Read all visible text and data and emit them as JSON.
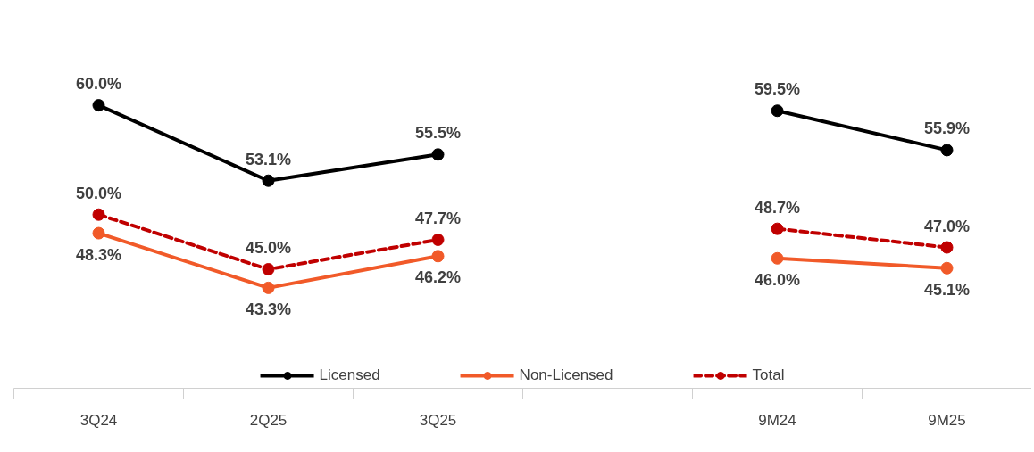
{
  "chart_data": {
    "type": "line",
    "categories": [
      "3Q24",
      "2Q25",
      "3Q25",
      null,
      "9M24",
      "9M25"
    ],
    "tick_labels": "x",
    "grid": false,
    "legend": "bottom",
    "marker": "circle",
    "series": [
      {
        "name": "Licensed",
        "color": "#000000",
        "line_style": "solid",
        "values": [
          60.0,
          53.1,
          55.5,
          null,
          59.5,
          55.9
        ],
        "value_labels": [
          "60.0%",
          "53.1%",
          "55.5%",
          null,
          "59.5%",
          "55.9%"
        ]
      },
      {
        "name": "Non-Licensed",
        "color": "#f15a29",
        "line_style": "solid",
        "values": [
          48.3,
          43.3,
          46.2,
          null,
          46.0,
          45.1
        ],
        "value_labels": [
          "48.3%",
          "43.3%",
          "46.2%",
          null,
          "46.0%",
          "45.1%"
        ]
      },
      {
        "name": "Total",
        "color": "#c00000",
        "line_style": "dashed",
        "values": [
          50.0,
          45.0,
          47.7,
          null,
          48.7,
          47.0
        ],
        "value_labels": [
          "50.0%",
          "45.0%",
          "47.7%",
          null,
          "48.7%",
          "47.0%"
        ]
      }
    ]
  }
}
